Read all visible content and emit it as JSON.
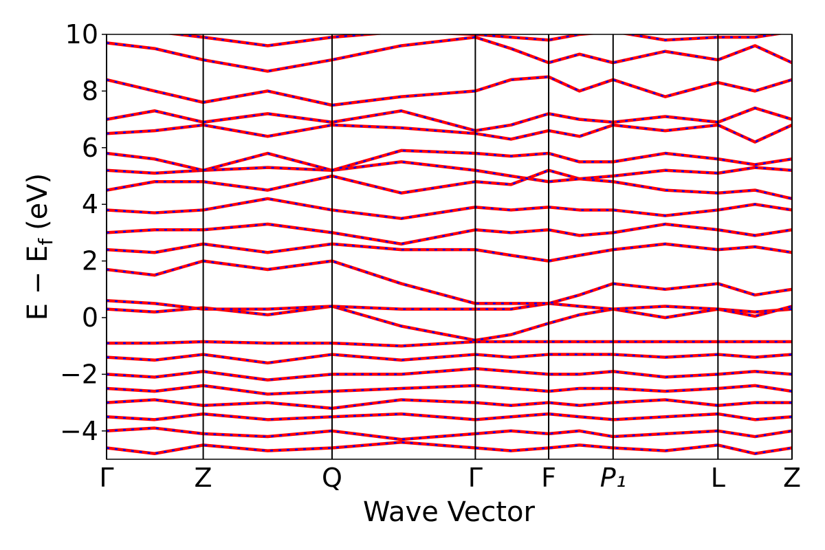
{
  "chart_data": {
    "type": "line",
    "xlabel": "Wave Vector",
    "ylabel": [
      "E − E",
      "f",
      "(eV)"
    ],
    "xlim": [
      0,
      1
    ],
    "ylim": [
      -5,
      10
    ],
    "xticks": [
      {
        "value": 0,
        "label": "Γ"
      },
      {
        "value": 0.141,
        "label": "Z"
      },
      {
        "value": 0.329,
        "label": "Q"
      },
      {
        "value": 0.538,
        "label": "Γ"
      },
      {
        "value": 0.645,
        "label": "F"
      },
      {
        "value": 0.739,
        "label": "P₁"
      },
      {
        "value": 0.892,
        "label": "L"
      },
      {
        "value": 1,
        "label": "Z"
      }
    ],
    "yticks": [
      {
        "value": -4,
        "label": "−4"
      },
      {
        "value": -2,
        "label": "−2"
      },
      0,
      2,
      4,
      6,
      8,
      10
    ],
    "overlay_color": "#0000ff",
    "x": [
      0,
      0.07,
      0.141,
      0.235,
      0.329,
      0.43,
      0.538,
      0.59,
      0.645,
      0.69,
      0.739,
      0.815,
      0.892,
      0.946,
      1
    ],
    "series": [
      {
        "color": "#ff0000",
        "values": [
          -0.9,
          -0.9,
          -0.85,
          -0.9,
          -0.9,
          -1.0,
          -0.85,
          -0.85,
          -0.85,
          -0.85,
          -0.85,
          -0.85,
          -0.85,
          -0.85,
          -0.85
        ]
      },
      {
        "color": "#ff0000",
        "values": [
          -1.4,
          -1.5,
          -1.3,
          -1.6,
          -1.3,
          -1.5,
          -1.3,
          -1.4,
          -1.3,
          -1.3,
          -1.3,
          -1.4,
          -1.3,
          -1.4,
          -1.3
        ]
      },
      {
        "color": "#ff0000",
        "values": [
          -2.0,
          -2.1,
          -1.9,
          -2.2,
          -2.0,
          -2.0,
          -1.8,
          -1.9,
          -2.0,
          -2.0,
          -1.9,
          -2.1,
          -2.0,
          -1.9,
          -2.0
        ]
      },
      {
        "color": "#ff0000",
        "values": [
          -2.5,
          -2.6,
          -2.4,
          -2.7,
          -2.6,
          -2.5,
          -2.4,
          -2.5,
          -2.6,
          -2.5,
          -2.5,
          -2.6,
          -2.5,
          -2.4,
          -2.6
        ]
      },
      {
        "color": "#ff0000",
        "values": [
          -3.0,
          -2.9,
          -3.1,
          -3.0,
          -3.2,
          -2.9,
          -3.0,
          -3.1,
          -3.0,
          -3.1,
          -3.0,
          -2.9,
          -3.1,
          -3.0,
          -3.0
        ]
      },
      {
        "color": "#ff0000",
        "values": [
          -3.5,
          -3.6,
          -3.4,
          -3.6,
          -3.5,
          -3.4,
          -3.6,
          -3.5,
          -3.4,
          -3.5,
          -3.6,
          -3.5,
          -3.4,
          -3.6,
          -3.5
        ]
      },
      {
        "color": "#ff0000",
        "values": [
          -4.0,
          -3.9,
          -4.1,
          -4.2,
          -4.0,
          -4.3,
          -4.1,
          -4.0,
          -4.1,
          -4.0,
          -4.2,
          -4.1,
          -4.0,
          -4.2,
          -4.0
        ]
      },
      {
        "color": "#ff0000",
        "values": [
          -4.6,
          -4.8,
          -4.5,
          -4.7,
          -4.6,
          -4.4,
          -4.6,
          -4.7,
          -4.6,
          -4.5,
          -4.6,
          -4.7,
          -4.5,
          -4.8,
          -4.6
        ]
      },
      {
        "color": "#ff0000",
        "values": [
          0.3,
          0.2,
          0.35,
          0.1,
          0.4,
          -0.3,
          -0.8,
          -0.6,
          -0.2,
          0.1,
          0.3,
          0.0,
          0.3,
          0.2,
          0.3
        ]
      },
      {
        "color": "#ff0000",
        "values": [
          0.6,
          0.5,
          0.3,
          0.3,
          0.4,
          0.3,
          0.3,
          0.3,
          0.5,
          0.4,
          0.3,
          0.4,
          0.3,
          0.05,
          0.4
        ]
      },
      {
        "color": "#ff0000",
        "values": [
          1.7,
          1.5,
          2.0,
          1.7,
          2.0,
          1.2,
          0.5,
          0.5,
          0.5,
          0.8,
          1.2,
          1.0,
          1.2,
          0.8,
          1.0
        ]
      },
      {
        "color": "#ff0000",
        "values": [
          2.4,
          2.3,
          2.6,
          2.3,
          2.6,
          2.4,
          2.4,
          2.2,
          2.0,
          2.2,
          2.4,
          2.6,
          2.4,
          2.5,
          2.3
        ]
      },
      {
        "color": "#ff0000",
        "values": [
          3.0,
          3.1,
          3.1,
          3.3,
          3.0,
          2.6,
          3.1,
          3.0,
          3.1,
          2.9,
          3.0,
          3.3,
          3.1,
          2.9,
          3.1
        ]
      },
      {
        "color": "#ff0000",
        "values": [
          3.8,
          3.7,
          3.8,
          4.2,
          3.8,
          3.5,
          3.9,
          3.8,
          3.9,
          3.8,
          3.8,
          3.6,
          3.8,
          4.0,
          3.8
        ]
      },
      {
        "color": "#ff0000",
        "values": [
          4.5,
          4.8,
          4.8,
          4.5,
          5.0,
          4.4,
          4.8,
          4.7,
          5.2,
          4.9,
          4.8,
          4.5,
          4.4,
          4.5,
          4.2
        ]
      },
      {
        "color": "#ff0000",
        "values": [
          5.2,
          5.1,
          5.2,
          5.3,
          5.2,
          5.5,
          5.2,
          5.0,
          4.8,
          4.9,
          5.0,
          5.2,
          5.1,
          5.3,
          5.2
        ]
      },
      {
        "color": "#ff0000",
        "values": [
          5.8,
          5.6,
          5.2,
          5.8,
          5.2,
          5.9,
          5.8,
          5.7,
          5.8,
          5.5,
          5.5,
          5.8,
          5.6,
          5.4,
          5.6
        ]
      },
      {
        "color": "#ff0000",
        "values": [
          6.5,
          6.6,
          6.8,
          6.4,
          6.8,
          6.7,
          6.5,
          6.3,
          6.6,
          6.4,
          6.8,
          6.6,
          6.8,
          6.2,
          6.8
        ]
      },
      {
        "color": "#ff0000",
        "values": [
          7.0,
          7.3,
          6.9,
          7.2,
          6.9,
          7.3,
          6.6,
          6.8,
          7.2,
          7.0,
          6.9,
          7.1,
          6.9,
          7.4,
          7.0
        ]
      },
      {
        "color": "#ff0000",
        "values": [
          8.4,
          8.0,
          7.6,
          8.0,
          7.5,
          7.8,
          8.0,
          8.4,
          8.5,
          8.0,
          8.4,
          7.8,
          8.3,
          8.0,
          8.4
        ]
      },
      {
        "color": "#ff0000",
        "values": [
          9.7,
          9.5,
          9.1,
          8.7,
          9.1,
          9.6,
          9.9,
          9.5,
          9.0,
          9.3,
          9.0,
          9.4,
          9.1,
          9.6,
          9.0
        ]
      },
      {
        "color": "#ff0000",
        "values": [
          10.2,
          10.1,
          9.9,
          9.6,
          9.9,
          10.1,
          10.0,
          9.9,
          9.8,
          10.0,
          10.1,
          9.8,
          9.9,
          9.9,
          10.1
        ]
      }
    ]
  }
}
